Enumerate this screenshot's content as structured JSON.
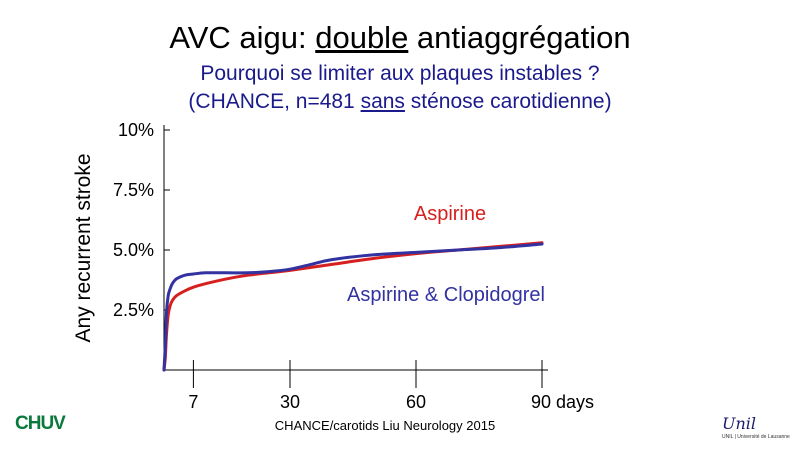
{
  "slide": {
    "title_pre": "AVC aigu: ",
    "title_underlined": "double",
    "title_post": " antiaggrégation",
    "subtitle1": "Pourquoi se limiter aux plaques instables ?",
    "subtitle2_pre": "(CHANCE, n=481 ",
    "subtitle2_underlined": "sans",
    "subtitle2_post": " sténose carotidienne)",
    "footer": "CHANCE/carotids Liu Neurology 2015",
    "logo_left_text": "CHUV",
    "logo_right_text": "Unil",
    "logo_right_small": "UNIL | Université de Lausanne"
  },
  "chart_data": {
    "type": "line",
    "ylabel": "Any recurrent stroke",
    "xlabel": "days",
    "xlim": [
      0,
      90
    ],
    "ylim": [
      0,
      10
    ],
    "yticks": [
      {
        "value": 2.5,
        "label": "2.5%"
      },
      {
        "value": 5.0,
        "label": "5.0%"
      },
      {
        "value": 7.5,
        "label": "7.5%"
      },
      {
        "value": 10,
        "label": "10%"
      }
    ],
    "xticks": [
      {
        "value": 7,
        "label": "7"
      },
      {
        "value": 30,
        "label": "30"
      },
      {
        "value": 60,
        "label": "60"
      },
      {
        "value": 90,
        "label": "90 days"
      }
    ],
    "series": [
      {
        "name": "Aspirine",
        "color": "#d62020",
        "x": [
          0,
          0.3,
          0.6,
          1,
          1.5,
          2,
          3,
          5,
          7,
          10,
          15,
          20,
          25,
          30,
          40,
          50,
          60,
          70,
          80,
          90
        ],
        "y": [
          0,
          0.5,
          1.5,
          2.3,
          2.7,
          2.9,
          3.1,
          3.3,
          3.45,
          3.6,
          3.8,
          3.95,
          4.05,
          4.15,
          4.4,
          4.65,
          4.85,
          5.0,
          5.15,
          5.3
        ]
      },
      {
        "name": "Aspirine & Clopidogrel",
        "color": "#3232a0",
        "x": [
          0,
          0.3,
          0.6,
          1,
          1.5,
          2,
          3,
          5,
          7,
          10,
          15,
          20,
          25,
          30,
          35,
          40,
          50,
          60,
          70,
          80,
          90
        ],
        "y": [
          0,
          1.0,
          2.4,
          3.1,
          3.4,
          3.6,
          3.8,
          3.95,
          4.0,
          4.05,
          4.05,
          4.05,
          4.1,
          4.2,
          4.4,
          4.6,
          4.8,
          4.9,
          5.0,
          5.1,
          5.25
        ]
      }
    ],
    "grid": false
  }
}
